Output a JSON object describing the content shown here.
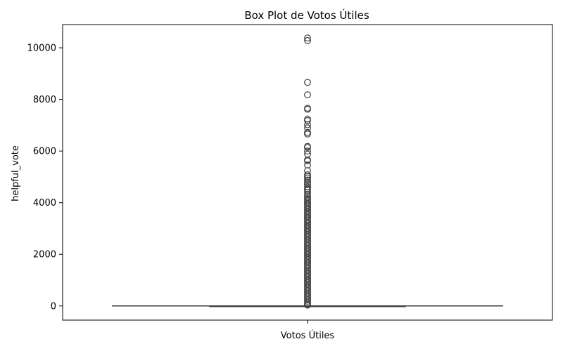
{
  "chart_data": {
    "type": "box",
    "title": "Box Plot de Votos Útiles",
    "xlabel": "",
    "ylabel": "helpful_vote",
    "categories": [
      "Votos Útiles"
    ],
    "ylim": [
      -550,
      10900
    ],
    "yticks": [
      0,
      2000,
      4000,
      6000,
      8000,
      10000
    ],
    "box": {
      "min": 0,
      "q1": 0,
      "median": 0,
      "q3": 1,
      "max": 2
    },
    "outliers": [
      10380,
      10280,
      8660,
      8180,
      7660,
      7620,
      7240,
      7180,
      7020,
      6900,
      6720,
      6660,
      6180,
      6140,
      6000,
      5880,
      5660,
      5620,
      5460,
      5240,
      5080,
      5020,
      4960,
      4880,
      4800,
      4740,
      4700,
      4620,
      4540,
      4480,
      4400,
      4330,
      4260,
      4200,
      4140,
      4080,
      4020,
      3960,
      3900,
      3840,
      3780,
      3720,
      3660,
      3600,
      3540,
      3480,
      3420,
      3360,
      3300,
      3240,
      3180,
      3120,
      3060,
      3000,
      2940,
      2880,
      2820,
      2760,
      2700,
      2640,
      2580,
      2520,
      2460,
      2400,
      2340,
      2280,
      2220,
      2160,
      2100,
      2040,
      1980,
      1920,
      1860,
      1800,
      1740,
      1680,
      1620,
      1560,
      1500,
      1440,
      1380,
      1320,
      1260,
      1200,
      1140,
      1080,
      1020,
      960,
      900,
      840,
      780,
      720,
      660,
      600,
      540,
      480,
      420,
      360,
      300,
      240,
      180,
      120,
      60,
      30
    ],
    "grid": false,
    "legend": "none",
    "colors": {
      "box_line": "#3f3f3f",
      "outlier_edge": "#3f3f3f",
      "axes": "#000000"
    }
  }
}
